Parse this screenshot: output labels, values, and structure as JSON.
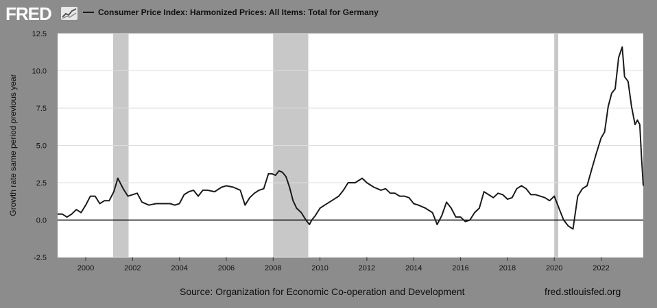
{
  "header": {
    "logo_text": "FRED",
    "legend_label": "Consumer Price Index: Harmonized Prices: All Items: Total for Germany"
  },
  "footer": {
    "source": "Source: Organization for Economic Co-operation and Development",
    "url": "fred.stlouisfed.org"
  },
  "colors": {
    "background": "#8c8c8c",
    "plot_background": "#ffffff",
    "line": "#1a1a1a",
    "recession": "#c8c8c8",
    "grid": "#dddddd"
  },
  "chart_data": {
    "type": "line",
    "title": "",
    "xlabel": "",
    "ylabel": "Growth rate same period previous year",
    "xlim": [
      1998.8,
      2023.8
    ],
    "ylim": [
      -2.5,
      12.5
    ],
    "yticks": [
      -2.5,
      0.0,
      2.5,
      5.0,
      7.5,
      10.0,
      12.5
    ],
    "ytick_labels": [
      "-2.5",
      "0.0",
      "2.5",
      "5.0",
      "7.5",
      "10.0",
      "12.5"
    ],
    "xticks": [
      2000,
      2002,
      2004,
      2006,
      2008,
      2010,
      2012,
      2014,
      2016,
      2018,
      2020,
      2022
    ],
    "xtick_labels": [
      "2000",
      "2002",
      "2004",
      "2006",
      "2008",
      "2010",
      "2012",
      "2014",
      "2016",
      "2018",
      "2020",
      "2022"
    ],
    "grid": true,
    "zero_line": true,
    "recessions": [
      [
        2001.17,
        2001.83
      ],
      [
        2008.0,
        2009.5
      ],
      [
        2020.0,
        2020.17
      ]
    ],
    "series": [
      {
        "x": [
          1998.8,
          1999.0,
          1999.2,
          1999.4,
          1999.6,
          1999.8,
          2000.0,
          2000.2,
          2000.4,
          2000.6,
          2000.8,
          2001.0,
          2001.2,
          2001.37,
          2001.6,
          2001.8,
          2002.0,
          2002.2,
          2002.4,
          2002.7,
          2003.0,
          2003.3,
          2003.6,
          2003.8,
          2004.0,
          2004.2,
          2004.4,
          2004.6,
          2004.8,
          2005.0,
          2005.2,
          2005.5,
          2005.8,
          2006.0,
          2006.3,
          2006.6,
          2006.8,
          2007.0,
          2007.2,
          2007.4,
          2007.6,
          2007.8,
          2007.95,
          2008.1,
          2008.25,
          2008.4,
          2008.55,
          2008.7,
          2008.85,
          2009.0,
          2009.2,
          2009.4,
          2009.55,
          2009.65,
          2009.8,
          2010.0,
          2010.2,
          2010.5,
          2010.8,
          2011.0,
          2011.2,
          2011.5,
          2011.8,
          2012.0,
          2012.3,
          2012.6,
          2012.8,
          2013.0,
          2013.2,
          2013.4,
          2013.6,
          2013.8,
          2014.0,
          2014.2,
          2014.5,
          2014.8,
          2015.0,
          2015.2,
          2015.4,
          2015.6,
          2015.8,
          2016.0,
          2016.2,
          2016.4,
          2016.6,
          2016.8,
          2017.0,
          2017.2,
          2017.4,
          2017.6,
          2017.8,
          2018.0,
          2018.2,
          2018.4,
          2018.6,
          2018.8,
          2019.0,
          2019.2,
          2019.4,
          2019.6,
          2019.8,
          2020.0,
          2020.2,
          2020.4,
          2020.6,
          2020.8,
          2021.0,
          2021.2,
          2021.4,
          2021.6,
          2021.8,
          2022.0,
          2022.15,
          2022.3,
          2022.45,
          2022.6,
          2022.75,
          2022.9,
          2023.0,
          2023.15,
          2023.3,
          2023.45,
          2023.55,
          2023.65,
          2023.72,
          2023.8
        ],
        "values": [
          0.4,
          0.4,
          0.2,
          0.4,
          0.7,
          0.5,
          1.0,
          1.6,
          1.6,
          1.1,
          1.3,
          1.3,
          1.9,
          2.8,
          2.1,
          1.6,
          1.7,
          1.8,
          1.2,
          1.0,
          1.1,
          1.1,
          1.1,
          1.0,
          1.1,
          1.7,
          1.9,
          2.0,
          1.6,
          2.0,
          2.0,
          1.9,
          2.2,
          2.3,
          2.2,
          2.0,
          1.0,
          1.5,
          1.8,
          2.0,
          2.1,
          3.1,
          3.1,
          3.0,
          3.3,
          3.2,
          2.9,
          2.2,
          1.3,
          0.8,
          0.5,
          0.0,
          -0.3,
          0.0,
          0.3,
          0.8,
          1.0,
          1.3,
          1.6,
          2.0,
          2.5,
          2.5,
          2.8,
          2.5,
          2.2,
          2.0,
          2.1,
          1.8,
          1.8,
          1.6,
          1.6,
          1.5,
          1.1,
          1.0,
          0.8,
          0.5,
          -0.3,
          0.3,
          1.2,
          0.8,
          0.2,
          0.2,
          -0.1,
          0.0,
          0.5,
          0.8,
          1.9,
          1.7,
          1.5,
          1.8,
          1.7,
          1.4,
          1.5,
          2.1,
          2.3,
          2.1,
          1.7,
          1.7,
          1.6,
          1.5,
          1.3,
          1.6,
          0.8,
          0.0,
          -0.4,
          -0.6,
          1.6,
          2.1,
          2.3,
          3.4,
          4.5,
          5.5,
          5.9,
          7.6,
          8.5,
          8.8,
          10.9,
          11.6,
          9.6,
          9.3,
          7.6,
          6.4,
          6.7,
          6.4,
          4.3,
          2.3
        ]
      }
    ]
  }
}
